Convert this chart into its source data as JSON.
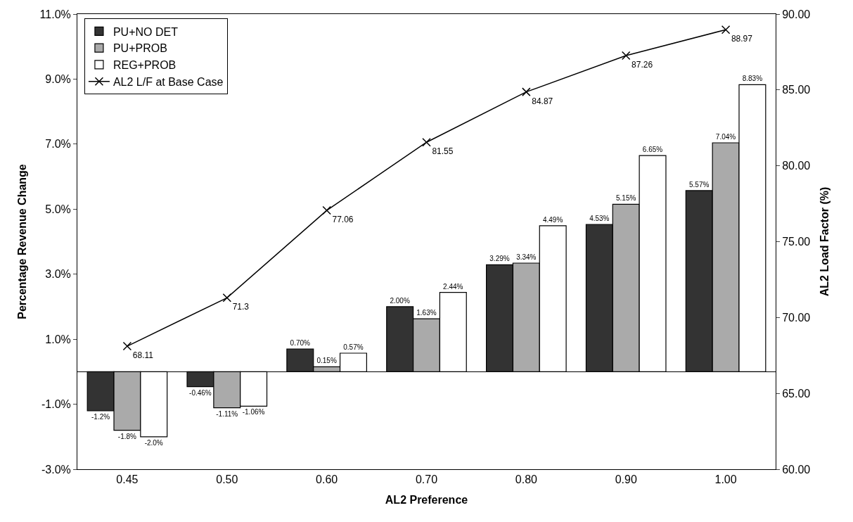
{
  "chart_data": {
    "type": "bar",
    "xlabel": "AL2 Preference",
    "ylabel": "Percentage Revenue Change",
    "y2label": "AL2 Load Factor (%)",
    "categories": [
      "0.45",
      "0.50",
      "0.60",
      "0.70",
      "0.80",
      "0.90",
      "1.00"
    ],
    "series": [
      {
        "name": "PU+NO DET",
        "color": "#333333",
        "values": [
          -1.2,
          -0.46,
          0.7,
          2.0,
          3.29,
          4.53,
          5.57
        ],
        "value_labels": [
          "-1.2%",
          "-0.46%",
          "0.70%",
          "2.00%",
          "3.29%",
          "4.53%",
          "5.57%"
        ]
      },
      {
        "name": "PU+PROB",
        "color": "#aaaaaa",
        "values": [
          -1.8,
          -1.11,
          0.15,
          1.63,
          3.34,
          5.15,
          7.04
        ],
        "value_labels": [
          "-1.8%",
          "-1.11%",
          "0.15%",
          "1.63%",
          "3.34%",
          "5.15%",
          "7.04%"
        ]
      },
      {
        "name": "REG+PROB",
        "color": "#ffffff",
        "values": [
          -2.0,
          -1.06,
          0.57,
          2.44,
          4.49,
          6.65,
          8.83
        ],
        "value_labels": [
          "-2.0%",
          "-1.06%",
          "0.57%",
          "2.44%",
          "4.49%",
          "6.65%",
          "8.83%"
        ]
      },
      {
        "name": "AL2 L/F at Base Case",
        "type": "line",
        "axis": "y2",
        "color": "#000000",
        "marker": "cross",
        "values": [
          68.11,
          71.3,
          77.06,
          81.55,
          84.87,
          87.26,
          88.97
        ],
        "value_labels": [
          "68.11",
          "71.3",
          "77.06",
          "81.55",
          "84.87",
          "87.26",
          "88.97"
        ]
      }
    ],
    "ylim": [
      -3,
      11
    ],
    "yticks": [
      {
        "value": -3,
        "label": "-3.0%"
      },
      {
        "value": -1,
        "label": "-1.0%"
      },
      {
        "value": 1,
        "label": "1.0%"
      },
      {
        "value": 3,
        "label": "3.0%"
      },
      {
        "value": 5,
        "label": "5.0%"
      },
      {
        "value": 7,
        "label": "7.0%"
      },
      {
        "value": 9,
        "label": "9.0%"
      },
      {
        "value": 11,
        "label": "11.0%"
      }
    ],
    "y2lim": [
      60,
      90
    ],
    "y2ticks": [
      {
        "value": 60,
        "label": "60.00"
      },
      {
        "value": 65,
        "label": "65.00"
      },
      {
        "value": 70,
        "label": "70.00"
      },
      {
        "value": 75,
        "label": "75.00"
      },
      {
        "value": 80,
        "label": "80.00"
      },
      {
        "value": 85,
        "label": "85.00"
      },
      {
        "value": 90,
        "label": "90.00"
      }
    ],
    "legend": "top left"
  }
}
